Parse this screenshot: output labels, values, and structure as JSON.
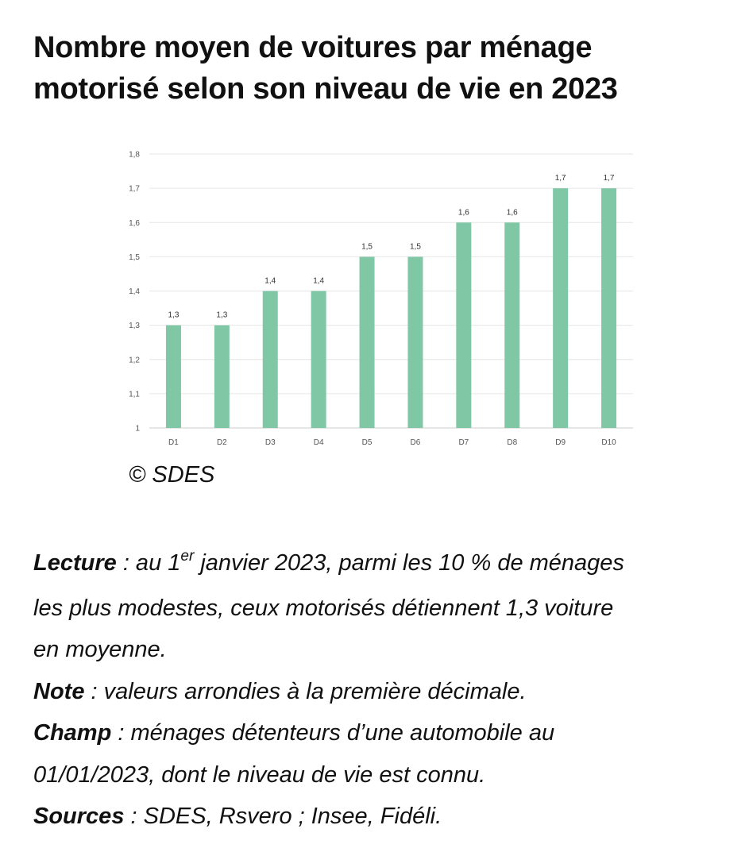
{
  "title": {
    "line1": "Nombre moyen de voitures par ménage",
    "line2": "motorisé selon son niveau de vie en 2023"
  },
  "chart_data": {
    "type": "bar",
    "title": "Nombre moyen de voitures par ménage motorisé selon son niveau de vie en 2023",
    "categories": [
      "D1",
      "D2",
      "D3",
      "D4",
      "D5",
      "D6",
      "D7",
      "D8",
      "D9",
      "D10"
    ],
    "values": [
      1.3,
      1.3,
      1.4,
      1.4,
      1.5,
      1.5,
      1.6,
      1.6,
      1.7,
      1.7
    ],
    "data_labels": [
      "1,3",
      "1,3",
      "1,4",
      "1,4",
      "1,5",
      "1,5",
      "1,6",
      "1,6",
      "1,7",
      "1,7"
    ],
    "ylim": [
      1,
      1.8
    ],
    "yticks": [
      1,
      1.1,
      1.2,
      1.3,
      1.4,
      1.5,
      1.6,
      1.7,
      1.8
    ],
    "ytick_labels": [
      "1",
      "1,1",
      "1,2",
      "1,3",
      "1,4",
      "1,5",
      "1,6",
      "1,7",
      "1,8"
    ],
    "xlabel": "",
    "ylabel": "",
    "grid": true,
    "legend": "none",
    "bar_color": "#7fc7a5"
  },
  "copyright": "© SDES",
  "notes": {
    "lecture_label": "Lecture",
    "lecture_text_1a": " : au 1",
    "lecture_sup": "er",
    "lecture_text_1b": " janvier 2023, parmi les 10 % de ménages",
    "lecture_text_2": "les plus modestes, ceux motorisés détiennent 1,3 voiture",
    "lecture_text_3": "en moyenne.",
    "note_label": "Note",
    "note_text": " : valeurs arrondies à la première décimale.",
    "champ_label": "Champ",
    "champ_text_1": " : ménages détenteurs d’une automobile au",
    "champ_text_2": "01/01/2023, dont le niveau de vie est connu.",
    "sources_label": "Sources",
    "sources_text": " : SDES, Rsvero ; Insee, Fidéli."
  }
}
